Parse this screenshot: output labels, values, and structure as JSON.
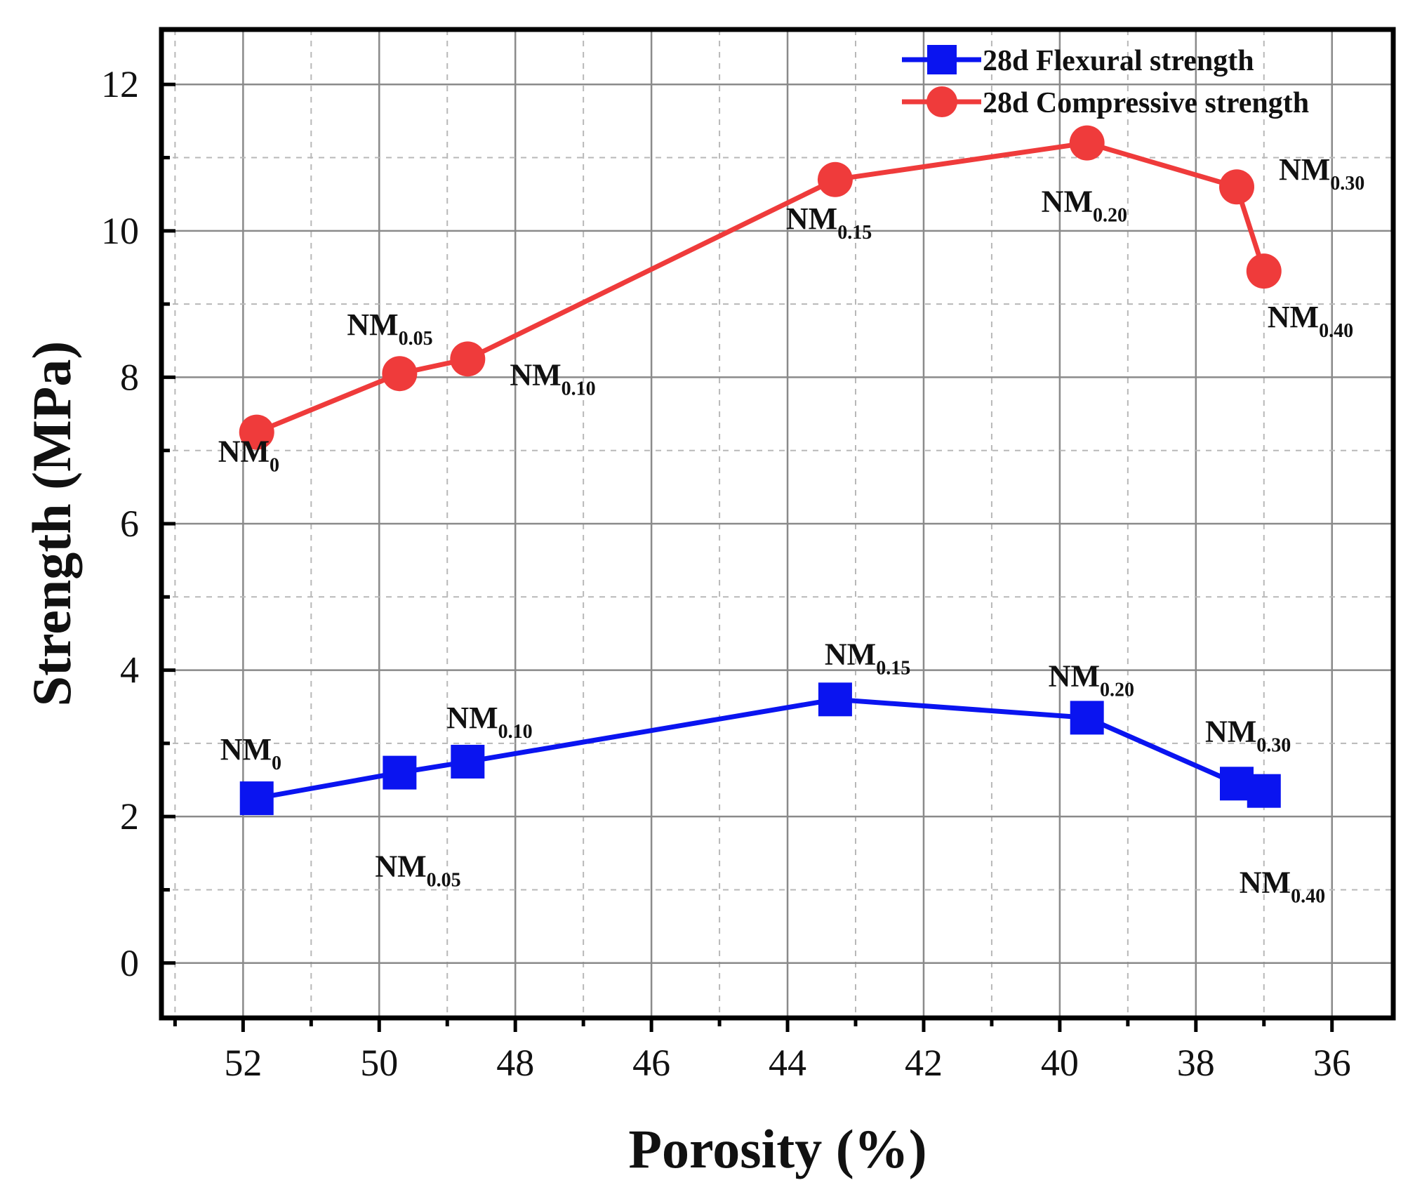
{
  "chart_data": {
    "type": "line",
    "xlabel": "Porosity (%)",
    "ylabel": "Strength (MPa)",
    "xlim": [
      53.2,
      35.1
    ],
    "ylim": [
      -0.75,
      12.75
    ],
    "xticks": [
      52,
      50,
      48,
      46,
      44,
      42,
      40,
      38,
      36
    ],
    "yticks": [
      0,
      2,
      4,
      6,
      8,
      10,
      12
    ],
    "x_tick_labels": [
      "52",
      "50",
      "48",
      "46",
      "44",
      "42",
      "40",
      "38",
      "36"
    ],
    "y_tick_labels": [
      "0",
      "2",
      "4",
      "6",
      "8",
      "10",
      "12"
    ],
    "grid": true,
    "legend_position": "top-right",
    "series": [
      {
        "name": "28d Flexural strength",
        "color": "#0a14f0",
        "marker": "square",
        "x": [
          51.8,
          49.7,
          48.7,
          43.3,
          39.6,
          37.4,
          37.0
        ],
        "y": [
          2.25,
          2.6,
          2.75,
          3.6,
          3.35,
          2.45,
          2.35
        ],
        "labels": [
          {
            "base": "NM",
            "sub": "0"
          },
          {
            "base": "NM",
            "sub": "0.05"
          },
          {
            "base": "NM",
            "sub": "0.10"
          },
          {
            "base": "NM",
            "sub": "0.15"
          },
          {
            "base": "NM",
            "sub": "0.20"
          },
          {
            "base": "NM",
            "sub": "0.30"
          },
          {
            "base": "NM",
            "sub": "0.40"
          }
        ]
      },
      {
        "name": "28d Compressive strength",
        "color": "#ef3b3b",
        "marker": "circle",
        "x": [
          51.8,
          49.7,
          48.7,
          43.3,
          39.6,
          37.4,
          37.0
        ],
        "y": [
          7.25,
          8.05,
          8.25,
          10.7,
          11.2,
          10.6,
          9.45
        ],
        "labels": [
          {
            "base": "NM",
            "sub": "0"
          },
          {
            "base": "NM",
            "sub": "0.05"
          },
          {
            "base": "NM",
            "sub": "0.10"
          },
          {
            "base": "NM",
            "sub": "0.15"
          },
          {
            "base": "NM",
            "sub": "0.20"
          },
          {
            "base": "NM",
            "sub": "0.30"
          },
          {
            "base": "NM",
            "sub": "0.40"
          }
        ]
      }
    ]
  }
}
